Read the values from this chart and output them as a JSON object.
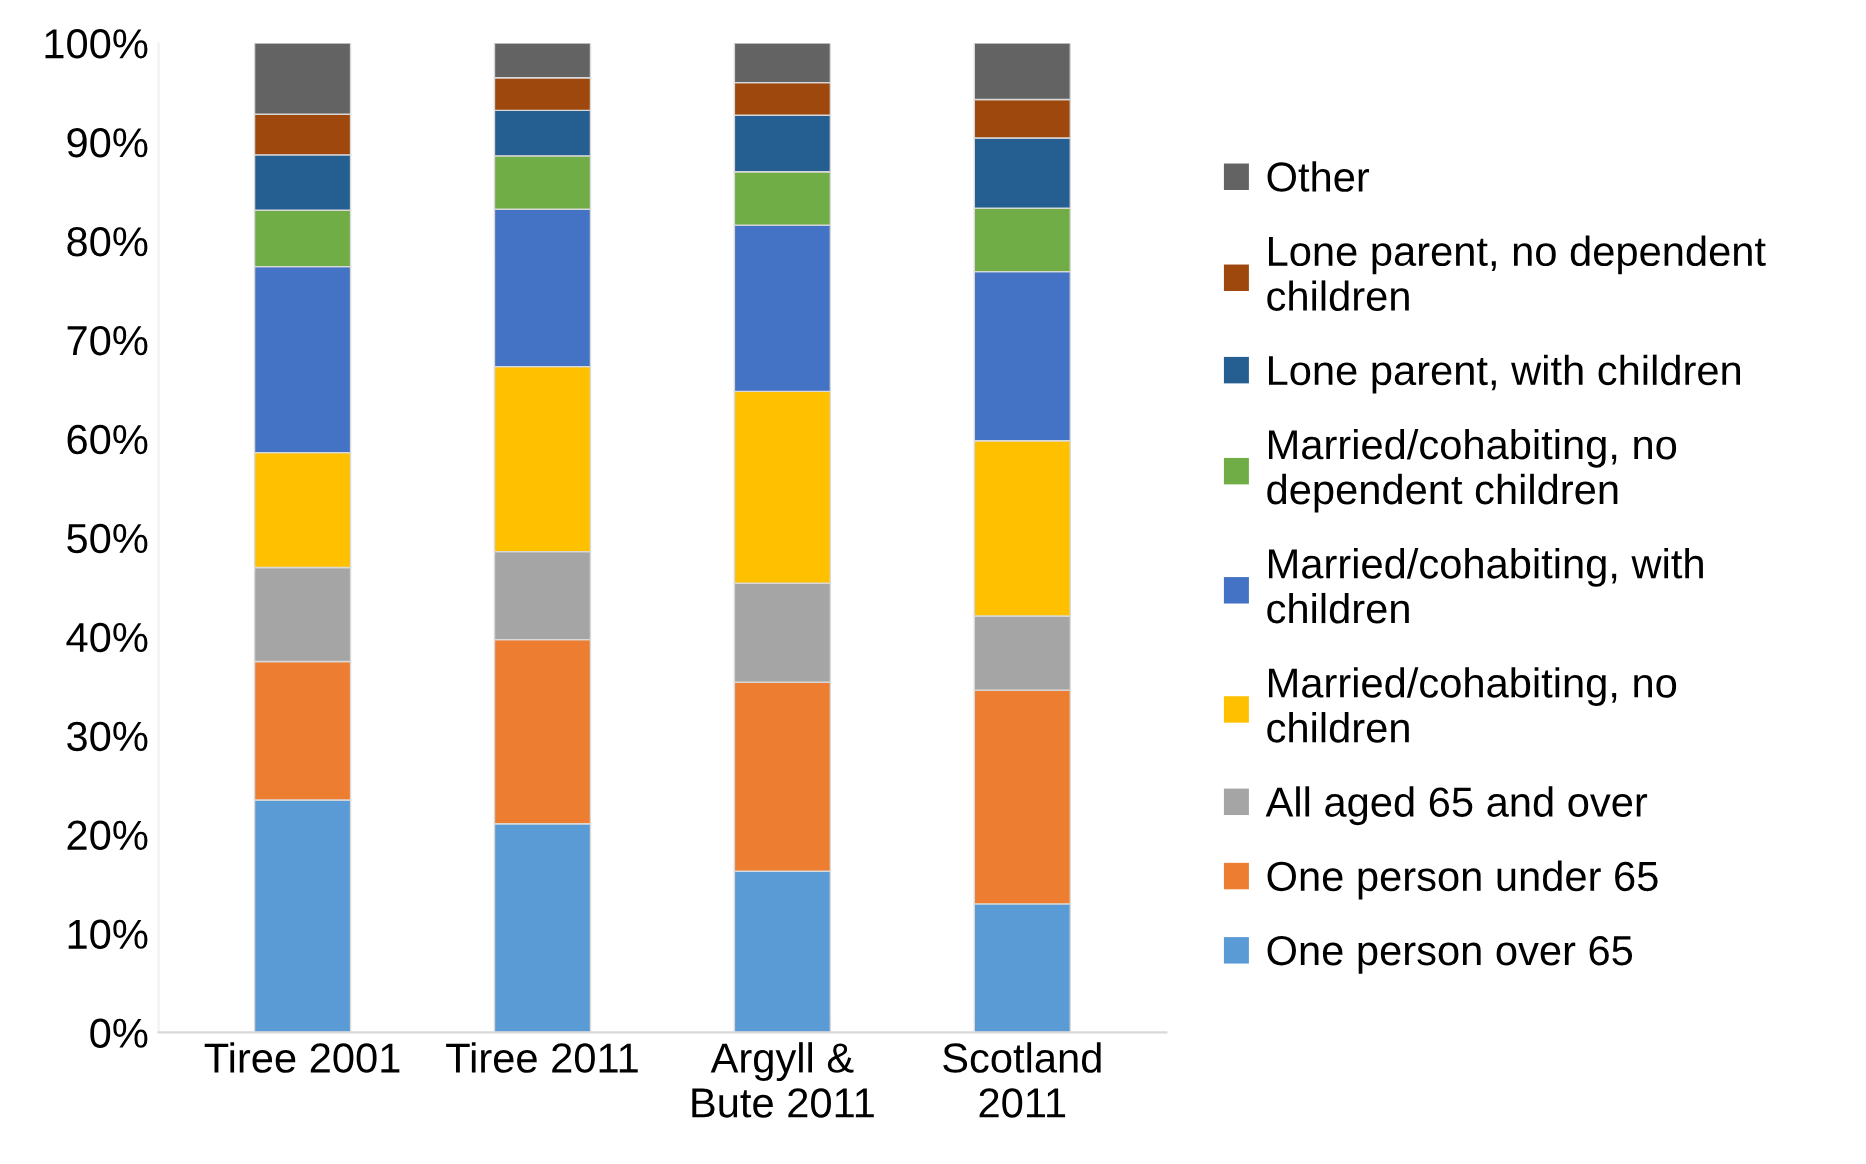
{
  "chart_data": {
    "type": "bar",
    "stacked": true,
    "categories": [
      "Tiree 2001",
      "Tiree 2011",
      "Argyll &\nBute 2011",
      "Scotland\n2011"
    ],
    "series": [
      {
        "name": "One person over 65",
        "color": "#5b9bd5",
        "values": [
          23.5,
          21.1,
          16.3,
          13.0
        ]
      },
      {
        "name": "One person under 65",
        "color": "#ed7d31",
        "values": [
          14.0,
          18.6,
          19.1,
          21.6
        ]
      },
      {
        "name": "All aged 65 and over",
        "color": "#a5a5a5",
        "values": [
          9.5,
          8.9,
          10.0,
          7.5
        ]
      },
      {
        "name": "Married/cohabiting, no\nchildren",
        "color": "#ffc000",
        "values": [
          11.6,
          18.7,
          19.4,
          17.7
        ]
      },
      {
        "name": "Married/cohabiting, with\nchildren",
        "color": "#4472c4",
        "values": [
          18.8,
          15.9,
          16.8,
          17.1
        ]
      },
      {
        "name": "Married/cohabiting, no\ndependent children",
        "color": "#70ad47",
        "values": [
          5.7,
          5.4,
          5.4,
          6.4
        ]
      },
      {
        "name": "Lone parent, with children",
        "color": "#255e91",
        "values": [
          5.6,
          4.6,
          5.7,
          7.1
        ]
      },
      {
        "name": "Lone parent, no dependent\nchildren",
        "color": "#9e480e",
        "values": [
          4.1,
          3.3,
          3.3,
          3.9
        ]
      },
      {
        "name": "Other",
        "color": "#636363",
        "values": [
          7.2,
          3.5,
          4.0,
          5.7
        ]
      }
    ],
    "ylim": [
      0,
      100
    ],
    "yticks": [
      {
        "value": 0,
        "label": "0%"
      },
      {
        "value": 10,
        "label": "10%"
      },
      {
        "value": 20,
        "label": "20%"
      },
      {
        "value": 30,
        "label": "30%"
      },
      {
        "value": 40,
        "label": "40%"
      },
      {
        "value": 50,
        "label": "50%"
      },
      {
        "value": 60,
        "label": "60%"
      },
      {
        "value": 70,
        "label": "70%"
      },
      {
        "value": 80,
        "label": "80%"
      },
      {
        "value": 90,
        "label": "90%"
      },
      {
        "value": 100,
        "label": "100%"
      }
    ],
    "grid": false,
    "legend": "right"
  }
}
